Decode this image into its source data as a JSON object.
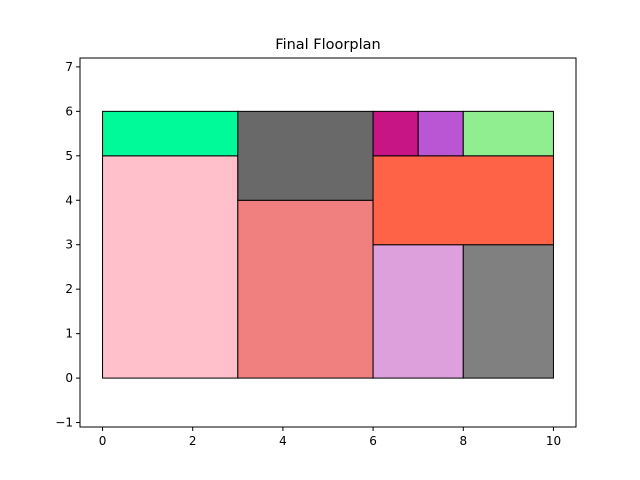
{
  "chart_data": {
    "type": "floorplan",
    "title": "Final Floorplan",
    "xlabel": "",
    "ylabel": "",
    "xlim": [
      -0.5,
      10.5
    ],
    "ylim": [
      -1.1,
      7.2
    ],
    "xticks": [
      0,
      2,
      4,
      6,
      8,
      10
    ],
    "yticks": [
      -1,
      0,
      1,
      2,
      3,
      4,
      5,
      6,
      7
    ],
    "grid": false,
    "rooms": [
      {
        "x0": 0,
        "y0": 0,
        "x1": 3,
        "y1": 5,
        "color": "#FFC0CB"
      },
      {
        "x0": 0,
        "y0": 5,
        "x1": 3,
        "y1": 6,
        "color": "#00FA9A"
      },
      {
        "x0": 3,
        "y0": 0,
        "x1": 6,
        "y1": 4,
        "color": "#F08080"
      },
      {
        "x0": 3,
        "y0": 4,
        "x1": 6,
        "y1": 6,
        "color": "#696969"
      },
      {
        "x0": 6,
        "y0": 0,
        "x1": 8,
        "y1": 3,
        "color": "#DDA0DD"
      },
      {
        "x0": 8,
        "y0": 0,
        "x1": 10,
        "y1": 3,
        "color": "#808080"
      },
      {
        "x0": 6,
        "y0": 3,
        "x1": 10,
        "y1": 5,
        "color": "#FF6347"
      },
      {
        "x0": 6,
        "y0": 5,
        "x1": 7,
        "y1": 6,
        "color": "#C71585"
      },
      {
        "x0": 7,
        "y0": 5,
        "x1": 8,
        "y1": 6,
        "color": "#BA55D3"
      },
      {
        "x0": 8,
        "y0": 5,
        "x1": 10,
        "y1": 6,
        "color": "#90EE90"
      }
    ]
  }
}
